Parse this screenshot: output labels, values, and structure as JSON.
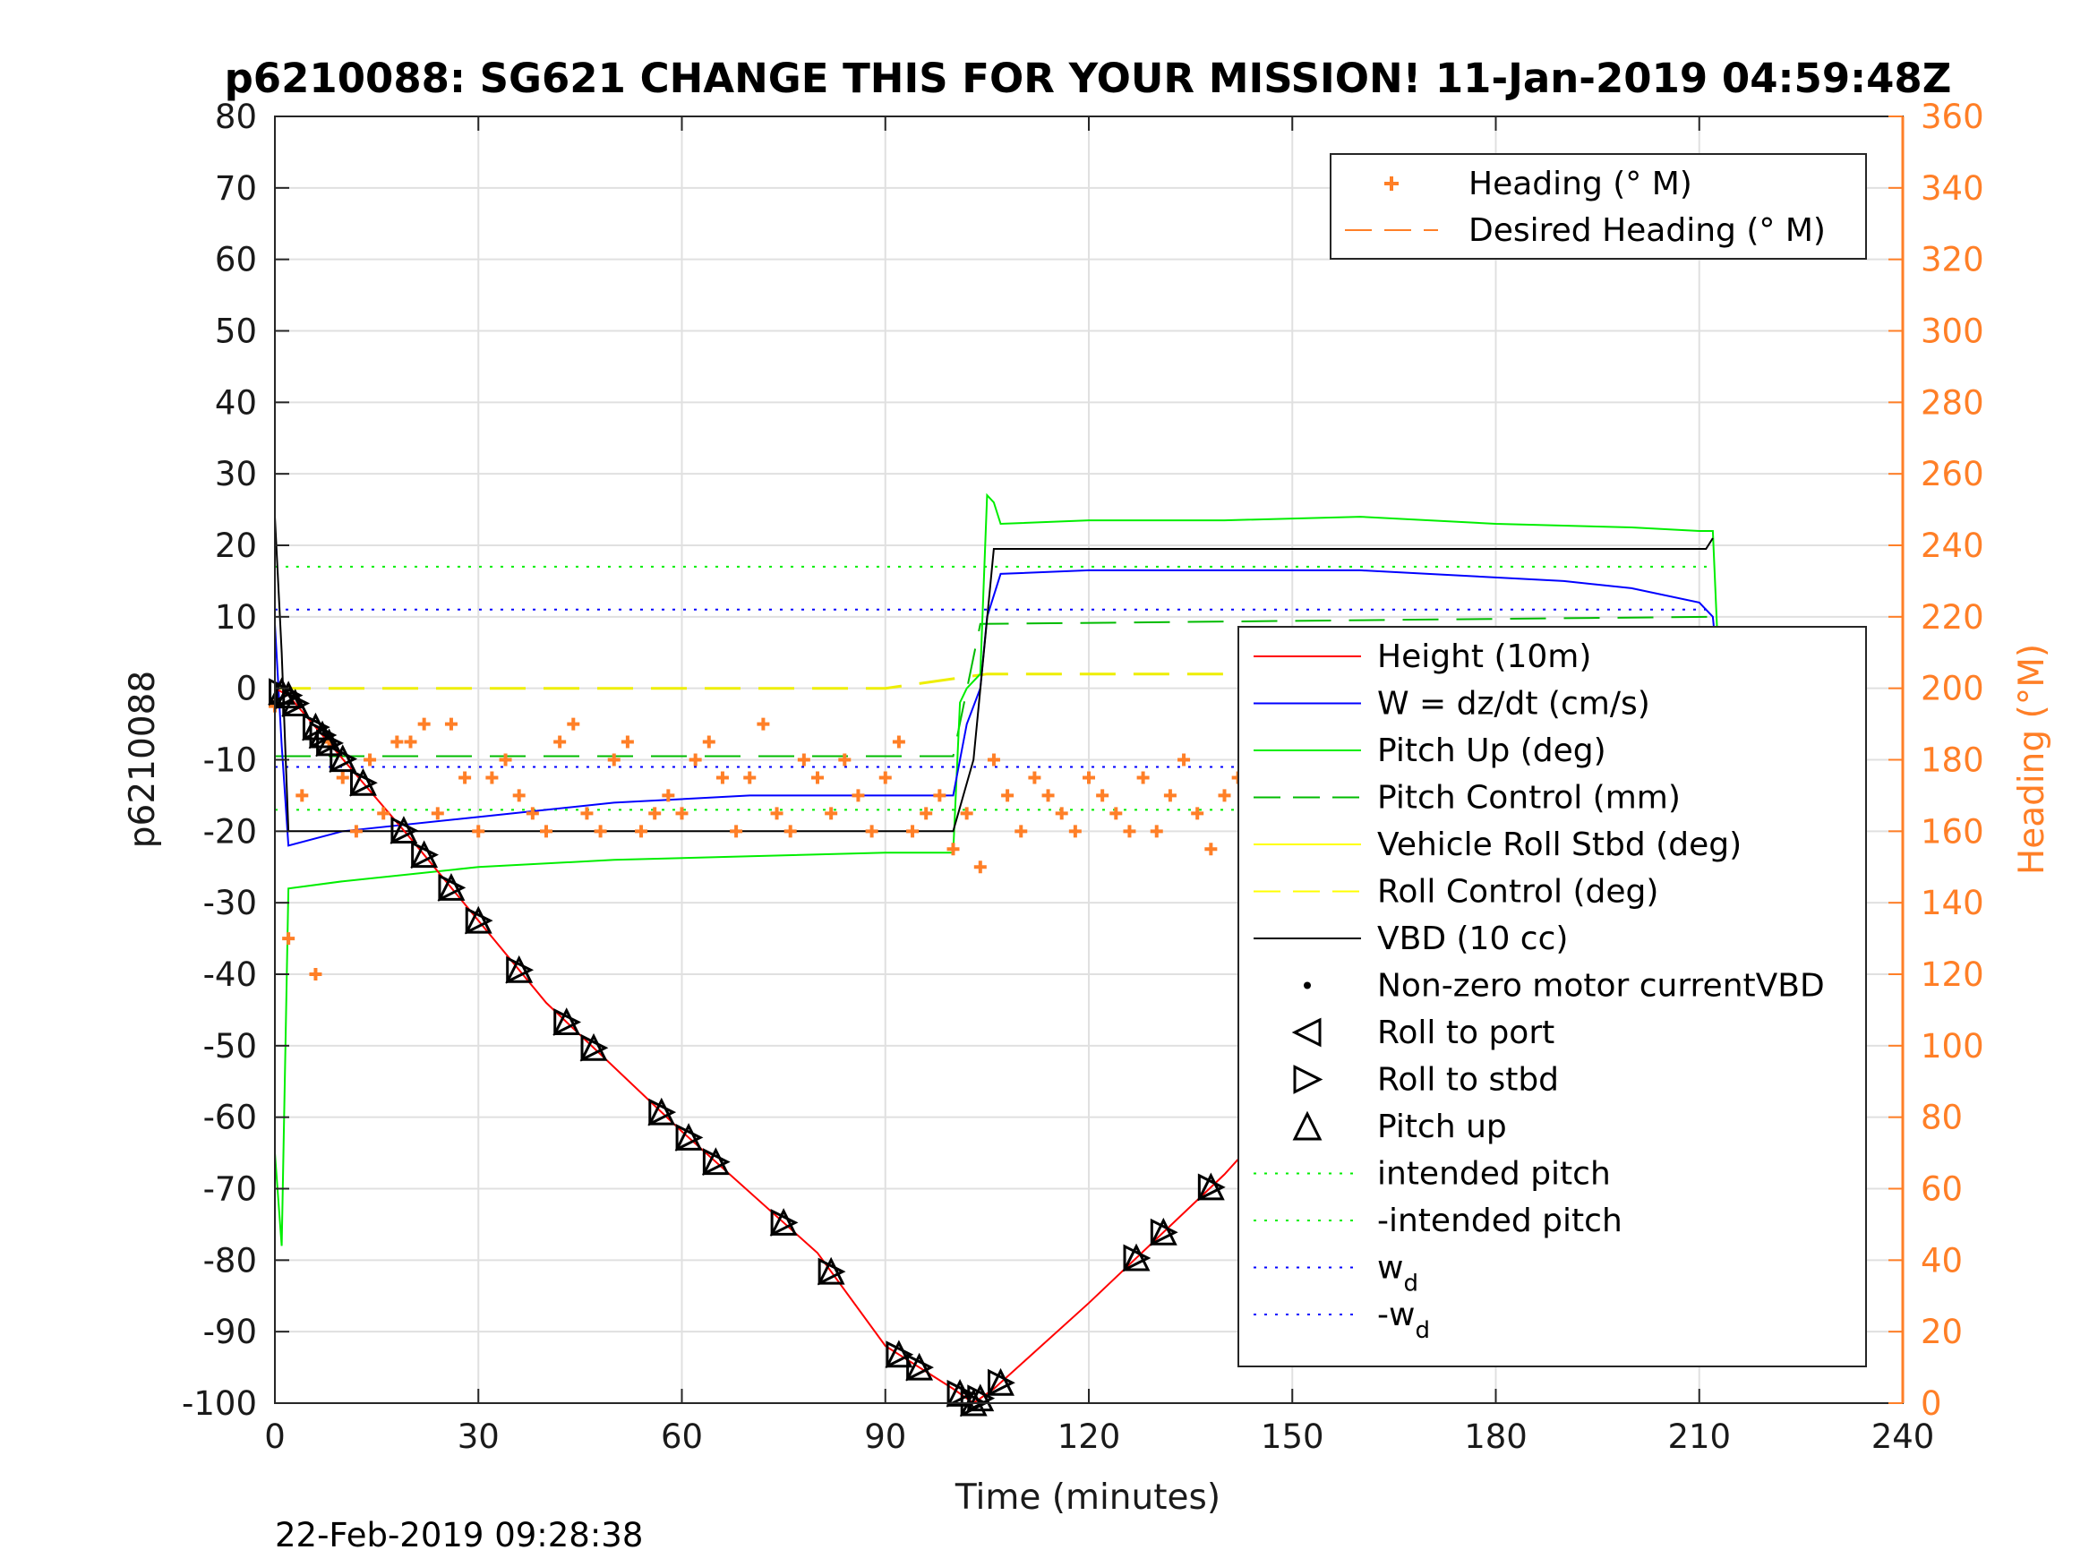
{
  "chart_data": {
    "type": "line",
    "title": "p6210088: SG621 CHANGE THIS FOR YOUR MISSION! 11-Jan-2019 04:59:48Z",
    "xlabel": "Time (minutes)",
    "ylabel": "p6210088",
    "y2label": "Heading (°M)",
    "xlim": [
      0,
      240
    ],
    "ylim": [
      -100,
      80
    ],
    "y2lim": [
      0,
      360
    ],
    "xticks": [
      "0",
      "30",
      "60",
      "90",
      "120",
      "150",
      "180",
      "210",
      "240"
    ],
    "yticks": [
      "80",
      "70",
      "60",
      "50",
      "40",
      "30",
      "20",
      "10",
      "0",
      "-10",
      "-20",
      "-30",
      "-40",
      "-50",
      "-60",
      "-70",
      "-80",
      "-90",
      "-100"
    ],
    "y2ticks": [
      "360",
      "340",
      "320",
      "300",
      "280",
      "260",
      "240",
      "220",
      "200",
      "180",
      "160",
      "140",
      "120",
      "100",
      "80",
      "60",
      "40",
      "20",
      "0"
    ],
    "grid": true,
    "colors": {
      "height": "#ff0000",
      "w": "#0000ff",
      "pitch": "#00ee00",
      "pitch_control": "#00bb00",
      "roll_control": "#ffff00",
      "vbd": "#000000",
      "heading": "#ff7f27"
    },
    "series": [
      {
        "name": "Height (10m)",
        "x": [
          0,
          2,
          20,
          40,
          60,
          80,
          90,
          100,
          103,
          106,
          120,
          140,
          160,
          180,
          200,
          212
        ],
        "values": [
          0,
          -1,
          -21,
          -44,
          -62,
          -79,
          -92,
          -98,
          -100,
          -98,
          -86,
          -68,
          -47,
          -29,
          -11,
          0
        ]
      },
      {
        "name": "W = dz/dt (cm/s)",
        "x": [
          0,
          1,
          2,
          10,
          30,
          50,
          70,
          90,
          100,
          102,
          104,
          105,
          107,
          120,
          140,
          160,
          170,
          190,
          200,
          210,
          212,
          213
        ],
        "values": [
          9,
          -8,
          -22,
          -20,
          -18,
          -16,
          -15,
          -15,
          -15,
          -5,
          0,
          10,
          16,
          16.5,
          16.5,
          16.5,
          16,
          15,
          14,
          12,
          10,
          0
        ]
      },
      {
        "name": "Pitch Up (deg)",
        "x": [
          0,
          1,
          2,
          10,
          30,
          50,
          70,
          90,
          100,
          101,
          102,
          104,
          105,
          106,
          107,
          120,
          140,
          160,
          180,
          200,
          210,
          212,
          213
        ],
        "values": [
          -65,
          -78,
          -28,
          -27,
          -25,
          -24,
          -23.5,
          -23,
          -23,
          -2,
          0,
          2,
          27,
          26,
          23,
          23.5,
          23.5,
          24,
          23,
          22.5,
          22,
          22,
          0
        ]
      },
      {
        "name": "Pitch Control (mm)",
        "x": [
          0,
          100,
          104,
          212
        ],
        "values": [
          -9.5,
          -9.5,
          9,
          10
        ]
      },
      {
        "name": "Roll Control (deg)",
        "x": [
          0,
          30,
          60,
          90,
          105,
          120,
          150,
          180,
          212
        ],
        "values": [
          0,
          0,
          0,
          0,
          2,
          2,
          2,
          2,
          2
        ]
      },
      {
        "name": "VBD (10 cc)",
        "x": [
          0,
          1,
          2,
          100,
          103,
          106,
          150,
          211,
          212
        ],
        "values": [
          24,
          5,
          -20,
          -20,
          -10,
          19.5,
          19.5,
          19.5,
          21
        ]
      },
      {
        "name": "intended pitch",
        "x": [
          0,
          212
        ],
        "values": [
          17,
          17
        ]
      },
      {
        "name": "-intended pitch",
        "x": [
          0,
          212
        ],
        "values": [
          -17,
          -17
        ]
      },
      {
        "name": "w_d",
        "x": [
          0,
          212
        ],
        "values": [
          11,
          11
        ]
      },
      {
        "name": "-w_d",
        "x": [
          0,
          212
        ],
        "values": [
          -11,
          -11
        ]
      }
    ],
    "heading_series": {
      "name": "Heading (° M)",
      "x": [
        0,
        2,
        4,
        6,
        8,
        10,
        12,
        14,
        16,
        18,
        20,
        22,
        24,
        26,
        28,
        30,
        32,
        34,
        36,
        38,
        40,
        42,
        44,
        46,
        48,
        50,
        52,
        54,
        56,
        58,
        60,
        62,
        64,
        66,
        68,
        70,
        72,
        74,
        76,
        78,
        80,
        82,
        84,
        86,
        88,
        90,
        92,
        94,
        96,
        98,
        100,
        102,
        104,
        106,
        108,
        110,
        112,
        114,
        116,
        118,
        120,
        122,
        124,
        126,
        128,
        130,
        132,
        134,
        136,
        138,
        140,
        142,
        144,
        146,
        148,
        150,
        152,
        154,
        156,
        158,
        160,
        162,
        164,
        166,
        168,
        170,
        172,
        174,
        176,
        178,
        180,
        182,
        184,
        186,
        188,
        190,
        192,
        194,
        196,
        198,
        200,
        202,
        204,
        206,
        208,
        210,
        212
      ],
      "values": [
        195,
        130,
        170,
        120,
        185,
        175,
        160,
        180,
        165,
        185,
        185,
        190,
        165,
        190,
        175,
        160,
        175,
        180,
        170,
        165,
        160,
        185,
        190,
        165,
        160,
        180,
        185,
        160,
        165,
        170,
        165,
        180,
        185,
        175,
        160,
        175,
        190,
        165,
        160,
        180,
        175,
        165,
        180,
        170,
        160,
        175,
        185,
        160,
        165,
        170,
        155,
        165,
        150,
        180,
        170,
        160,
        175,
        170,
        165,
        160,
        175,
        170,
        165,
        160,
        175,
        160,
        170,
        180,
        165,
        155,
        170,
        175,
        165,
        160,
        175,
        160,
        175,
        155,
        170,
        175,
        165,
        170,
        175,
        165,
        180,
        160,
        175,
        160,
        170,
        165,
        175,
        160,
        170,
        165,
        175,
        160,
        170,
        175,
        160,
        180,
        175,
        170,
        165,
        180,
        175,
        150,
        190
      ]
    },
    "desired_heading": {
      "name": "Desired Heading (° M)",
      "values": []
    },
    "markers": [
      {
        "name": "Non-zero motor currentVBD",
        "symbol": "dot"
      },
      {
        "name": "Roll to port",
        "symbol": "triangle-left"
      },
      {
        "name": "Roll to stbd",
        "symbol": "triangle-right"
      },
      {
        "name": "Pitch up",
        "symbol": "triangle-up"
      }
    ],
    "marker_times": [
      1,
      2,
      3,
      6,
      7,
      8,
      10,
      13,
      19,
      22,
      26,
      30,
      36,
      43,
      47,
      57,
      61,
      65,
      75,
      82,
      92,
      95,
      101,
      103,
      104,
      107,
      127,
      131,
      138,
      148,
      152,
      153,
      156,
      160,
      167,
      177,
      184,
      199,
      201,
      207,
      209,
      211,
      212
    ],
    "legend_top": [
      {
        "label": "Heading (° M)",
        "symbol": "plus"
      },
      {
        "label": "Desired Heading (° M)",
        "symbol": "dash"
      }
    ],
    "legend_bottom": [
      {
        "label": "Height (10m)",
        "symbol": "line",
        "color": "#ff0000"
      },
      {
        "label": "W = dz/dt (cm/s)",
        "symbol": "line",
        "color": "#0000ff"
      },
      {
        "label": "Pitch Up (deg)",
        "symbol": "line",
        "color": "#00ee00"
      },
      {
        "label": "Pitch Control (mm)",
        "symbol": "dash",
        "color": "#00bb00"
      },
      {
        "label": "Vehicle Roll Stbd (deg)",
        "symbol": "line",
        "color": "#ffff00"
      },
      {
        "label": "Roll Control (deg)",
        "symbol": "dash",
        "color": "#ffff00"
      },
      {
        "label": "VBD (10 cc)",
        "symbol": "line",
        "color": "#000000"
      },
      {
        "label": "Non-zero motor currentVBD",
        "symbol": "dot",
        "color": "#000000"
      },
      {
        "label": "Roll to port",
        "symbol": "tri-left",
        "color": "#000000"
      },
      {
        "label": "Roll to stbd",
        "symbol": "tri-right",
        "color": "#000000"
      },
      {
        "label": "Pitch up",
        "symbol": "tri-up",
        "color": "#000000"
      },
      {
        "label": "intended pitch",
        "symbol": "dot-line",
        "color": "#00ee00"
      },
      {
        "label": "-intended pitch",
        "symbol": "dot-line",
        "color": "#00ee00"
      },
      {
        "label": "w",
        "sub": "d",
        "symbol": "dot-line",
        "color": "#0000ff"
      },
      {
        "label": "-w",
        "sub": "d",
        "symbol": "dot-line",
        "color": "#0000ff"
      }
    ],
    "timestamp": "22-Feb-2019 09:28:38"
  }
}
